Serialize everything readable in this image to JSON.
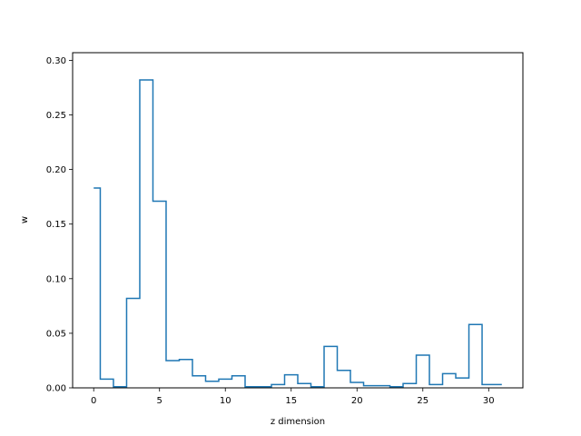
{
  "chart_data": {
    "type": "step",
    "xlabel": "z dimension",
    "ylabel": "w",
    "xlim": [
      -1.6,
      32.6
    ],
    "ylim": [
      0,
      0.307
    ],
    "x_ticks": [
      0,
      5,
      10,
      15,
      20,
      25,
      30
    ],
    "y_ticks": [
      0.0,
      0.05,
      0.1,
      0.15,
      0.2,
      0.25,
      0.3
    ],
    "x_tick_labels": [
      "0",
      "5",
      "10",
      "15",
      "20",
      "25",
      "30"
    ],
    "y_tick_labels": [
      "0.00",
      "0.05",
      "0.10",
      "0.15",
      "0.20",
      "0.25",
      "0.30"
    ],
    "grid": false,
    "line_color": "#1f77b4",
    "x": [
      0,
      1,
      2,
      3,
      4,
      5,
      6,
      7,
      8,
      9,
      10,
      11,
      12,
      13,
      14,
      15,
      16,
      17,
      18,
      19,
      20,
      21,
      22,
      23,
      24,
      25,
      26,
      27,
      28,
      29,
      30,
      31
    ],
    "values": [
      0.183,
      0.008,
      0.001,
      0.082,
      0.282,
      0.171,
      0.025,
      0.026,
      0.011,
      0.006,
      0.008,
      0.011,
      0.001,
      0.001,
      0.003,
      0.012,
      0.004,
      0.001,
      0.038,
      0.016,
      0.005,
      0.002,
      0.002,
      0.001,
      0.004,
      0.03,
      0.003,
      0.013,
      0.009,
      0.058,
      0.003,
      0.003
    ]
  }
}
